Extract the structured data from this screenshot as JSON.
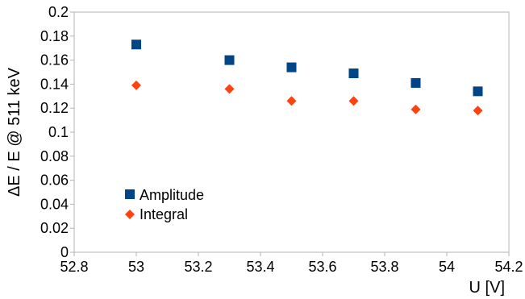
{
  "chart_data": {
    "type": "scatter",
    "xlabel": "U [V]",
    "ylabel": "ΔE / E @ 511 keV",
    "xlim": [
      52.8,
      54.2
    ],
    "ylim": [
      0,
      0.2
    ],
    "x_ticks": [
      "52.8",
      "53",
      "53.2",
      "53.4",
      "53.6",
      "53.8",
      "54",
      "54.2"
    ],
    "y_ticks": [
      "0",
      "0.02",
      "0.04",
      "0.06",
      "0.08",
      "0.1",
      "0.12",
      "0.14",
      "0.16",
      "0.18",
      "0.2"
    ],
    "grid": false,
    "legend_position": "bottom-left",
    "series": [
      {
        "name": "Amplitude",
        "marker": "square",
        "color": "#004586",
        "points": [
          {
            "x": 53.0,
            "y": 0.173
          },
          {
            "x": 53.3,
            "y": 0.16
          },
          {
            "x": 53.5,
            "y": 0.154
          },
          {
            "x": 53.7,
            "y": 0.149
          },
          {
            "x": 53.9,
            "y": 0.141
          },
          {
            "x": 54.1,
            "y": 0.134
          }
        ]
      },
      {
        "name": "Integral",
        "marker": "diamond",
        "color": "#ff420e",
        "points": [
          {
            "x": 53.0,
            "y": 0.139
          },
          {
            "x": 53.3,
            "y": 0.136
          },
          {
            "x": 53.5,
            "y": 0.126
          },
          {
            "x": 53.7,
            "y": 0.126
          },
          {
            "x": 53.9,
            "y": 0.119
          },
          {
            "x": 54.1,
            "y": 0.118
          }
        ]
      }
    ]
  }
}
